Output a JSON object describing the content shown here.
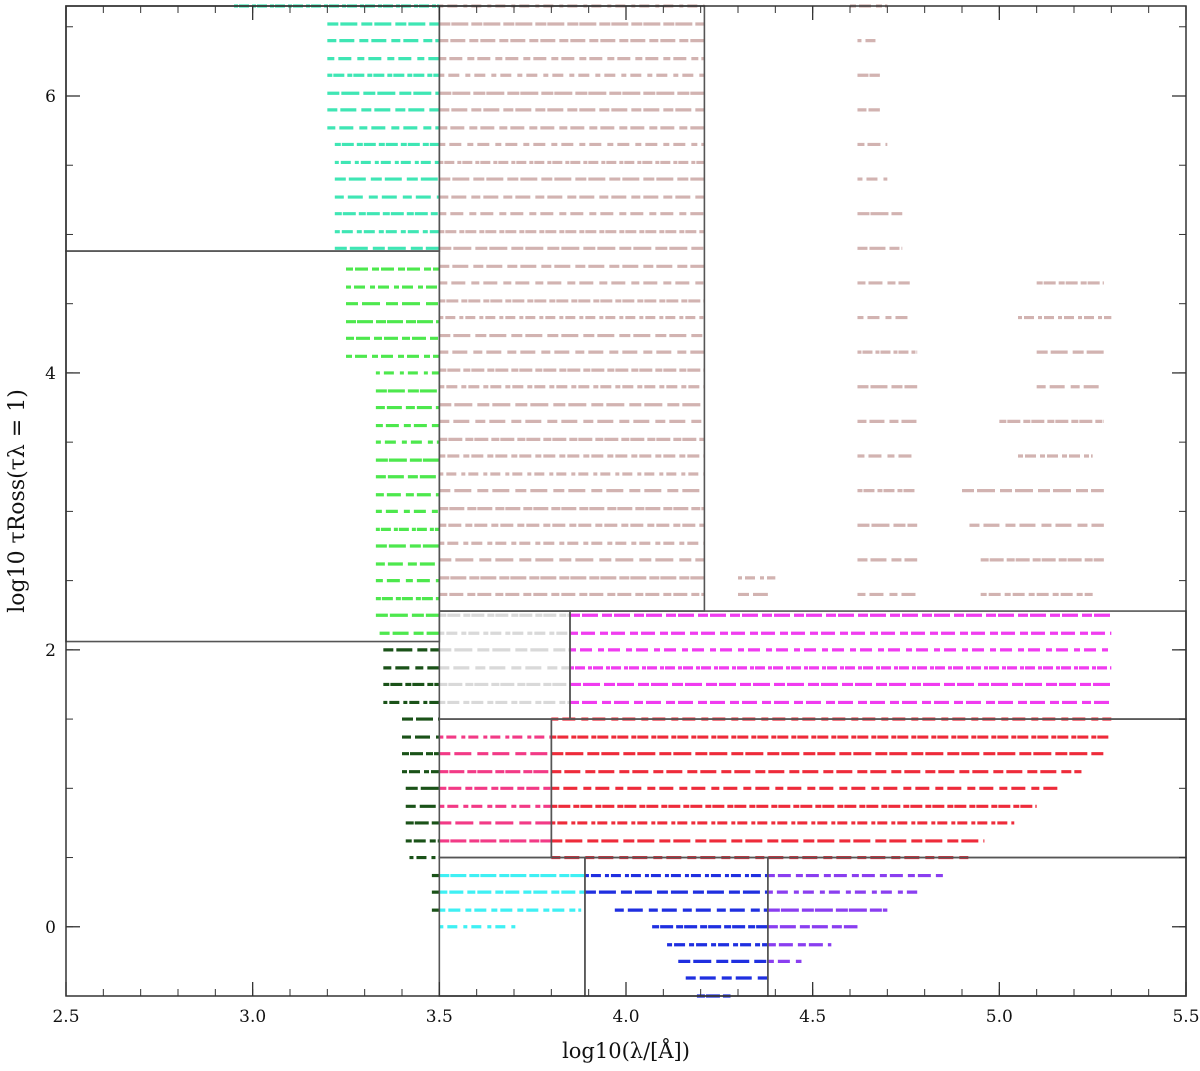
{
  "chart_data": {
    "type": "scatter",
    "title": "",
    "xlabel": "log10(λ/[Å])",
    "ylabel": "log10 τRoss(τλ = 1)",
    "xlim": [
      2.5,
      5.5
    ],
    "ylim": [
      -0.5,
      6.65
    ],
    "x_ticks": [
      "2.5",
      "3.0",
      "3.5",
      "4.0",
      "4.5",
      "5.0",
      "5.5"
    ],
    "y_ticks": [
      "0",
      "2",
      "4",
      "6"
    ],
    "x_tick_values": [
      2.5,
      3.0,
      3.5,
      4.0,
      4.5,
      5.0,
      5.5
    ],
    "y_tick_values": [
      0,
      2,
      4,
      6
    ],
    "grid": false,
    "boxes": [
      {
        "x0": 2.5,
        "x1": 3.5,
        "y0": 4.88,
        "y1": 6.65
      },
      {
        "x0": 2.5,
        "x1": 3.5,
        "y0": 2.06,
        "y1": 4.88
      },
      {
        "x0": 3.5,
        "x1": 4.21,
        "y0": 2.28,
        "y1": 6.65
      },
      {
        "x0": 3.5,
        "x1": 3.85,
        "y0": 1.5,
        "y1": 2.28
      },
      {
        "x0": 3.85,
        "x1": 5.5,
        "y0": 1.5,
        "y1": 2.28
      },
      {
        "x0": 3.5,
        "x1": 3.8,
        "y0": 0.5,
        "y1": 1.5
      },
      {
        "x0": 3.8,
        "x1": 5.5,
        "y0": 0.5,
        "y1": 1.5
      },
      {
        "x0": 3.5,
        "x1": 3.89,
        "y0": -0.5,
        "y1": 0.5
      },
      {
        "x0": 3.89,
        "x1": 4.38,
        "y0": -0.5,
        "y1": 0.5
      },
      {
        "x0": 4.38,
        "x1": 5.5,
        "y0": -0.5,
        "y1": 0.5
      }
    ],
    "series": [
      {
        "color": "#3fe6b4",
        "rows": [
          {
            "y": 6.65,
            "x0": 2.95,
            "x1": 3.5
          },
          {
            "y": 6.52,
            "x0": 3.2,
            "x1": 3.5
          },
          {
            "y": 6.4,
            "x0": 3.2,
            "x1": 3.5
          },
          {
            "y": 6.27,
            "x0": 3.2,
            "x1": 3.5
          },
          {
            "y": 6.15,
            "x0": 3.2,
            "x1": 3.5
          },
          {
            "y": 6.02,
            "x0": 3.2,
            "x1": 3.5
          },
          {
            "y": 5.9,
            "x0": 3.2,
            "x1": 3.5
          },
          {
            "y": 5.77,
            "x0": 3.2,
            "x1": 3.5
          },
          {
            "y": 5.65,
            "x0": 3.22,
            "x1": 3.5
          },
          {
            "y": 5.52,
            "x0": 3.22,
            "x1": 3.5
          },
          {
            "y": 5.4,
            "x0": 3.22,
            "x1": 3.5
          },
          {
            "y": 5.27,
            "x0": 3.22,
            "x1": 3.5
          },
          {
            "y": 5.15,
            "x0": 3.22,
            "x1": 3.5
          },
          {
            "y": 5.02,
            "x0": 3.22,
            "x1": 3.5
          },
          {
            "y": 4.9,
            "x0": 3.22,
            "x1": 3.5
          }
        ]
      },
      {
        "color": "#4de84d",
        "rows": [
          {
            "y": 4.75,
            "x0": 3.25,
            "x1": 3.5
          },
          {
            "y": 4.62,
            "x0": 3.25,
            "x1": 3.5
          },
          {
            "y": 4.5,
            "x0": 3.25,
            "x1": 3.5
          },
          {
            "y": 4.37,
            "x0": 3.25,
            "x1": 3.5
          },
          {
            "y": 4.25,
            "x0": 3.25,
            "x1": 3.5
          },
          {
            "y": 4.12,
            "x0": 3.25,
            "x1": 3.5
          },
          {
            "y": 4.0,
            "x0": 3.33,
            "x1": 3.5
          },
          {
            "y": 3.87,
            "x0": 3.33,
            "x1": 3.5
          },
          {
            "y": 3.75,
            "x0": 3.33,
            "x1": 3.5
          },
          {
            "y": 3.62,
            "x0": 3.33,
            "x1": 3.5
          },
          {
            "y": 3.5,
            "x0": 3.33,
            "x1": 3.5
          },
          {
            "y": 3.37,
            "x0": 3.33,
            "x1": 3.5
          },
          {
            "y": 3.25,
            "x0": 3.33,
            "x1": 3.5
          },
          {
            "y": 3.12,
            "x0": 3.33,
            "x1": 3.5
          },
          {
            "y": 3.0,
            "x0": 3.33,
            "x1": 3.5
          },
          {
            "y": 2.87,
            "x0": 3.33,
            "x1": 3.5
          },
          {
            "y": 2.75,
            "x0": 3.33,
            "x1": 3.5
          },
          {
            "y": 2.62,
            "x0": 3.33,
            "x1": 3.5
          },
          {
            "y": 2.5,
            "x0": 3.33,
            "x1": 3.5
          },
          {
            "y": 2.37,
            "x0": 3.33,
            "x1": 3.5
          },
          {
            "y": 2.25,
            "x0": 3.33,
            "x1": 3.5
          },
          {
            "y": 2.12,
            "x0": 3.34,
            "x1": 3.5
          }
        ]
      },
      {
        "color": "#1a5218",
        "rows": [
          {
            "y": 2.0,
            "x0": 3.35,
            "x1": 3.5
          },
          {
            "y": 1.87,
            "x0": 3.35,
            "x1": 3.5
          },
          {
            "y": 1.75,
            "x0": 3.35,
            "x1": 3.5
          },
          {
            "y": 1.62,
            "x0": 3.35,
            "x1": 3.5
          },
          {
            "y": 1.5,
            "x0": 3.4,
            "x1": 3.5
          },
          {
            "y": 1.37,
            "x0": 3.4,
            "x1": 3.5
          },
          {
            "y": 1.25,
            "x0": 3.4,
            "x1": 3.5
          },
          {
            "y": 1.12,
            "x0": 3.4,
            "x1": 3.5
          },
          {
            "y": 1.0,
            "x0": 3.41,
            "x1": 3.5
          },
          {
            "y": 0.87,
            "x0": 3.41,
            "x1": 3.5
          },
          {
            "y": 0.75,
            "x0": 3.41,
            "x1": 3.5
          },
          {
            "y": 0.62,
            "x0": 3.41,
            "x1": 3.5
          },
          {
            "y": 0.5,
            "x0": 3.42,
            "x1": 3.5
          },
          {
            "y": 0.37,
            "x0": 3.48,
            "x1": 3.5
          },
          {
            "y": 0.25,
            "x0": 3.48,
            "x1": 3.5
          },
          {
            "y": 0.12,
            "x0": 3.48,
            "x1": 3.5
          }
        ]
      },
      {
        "color": "#d2b3b1",
        "rows": [
          {
            "y": 6.65,
            "x0": 3.5,
            "x1": 4.21
          },
          {
            "y": 6.52,
            "x0": 3.5,
            "x1": 4.21
          },
          {
            "y": 6.4,
            "x0": 3.5,
            "x1": 4.21
          },
          {
            "y": 6.27,
            "x0": 3.5,
            "x1": 4.21
          },
          {
            "y": 6.15,
            "x0": 3.5,
            "x1": 4.21
          },
          {
            "y": 6.02,
            "x0": 3.5,
            "x1": 4.21
          },
          {
            "y": 5.9,
            "x0": 3.5,
            "x1": 4.21
          },
          {
            "y": 5.77,
            "x0": 3.5,
            "x1": 4.21
          },
          {
            "y": 5.65,
            "x0": 3.5,
            "x1": 4.21
          },
          {
            "y": 5.52,
            "x0": 3.5,
            "x1": 4.21
          },
          {
            "y": 5.4,
            "x0": 3.5,
            "x1": 4.21
          },
          {
            "y": 5.27,
            "x0": 3.5,
            "x1": 4.21
          },
          {
            "y": 5.15,
            "x0": 3.5,
            "x1": 4.21
          },
          {
            "y": 5.02,
            "x0": 3.5,
            "x1": 4.21
          },
          {
            "y": 4.9,
            "x0": 3.5,
            "x1": 4.21
          },
          {
            "y": 4.77,
            "x0": 3.5,
            "x1": 4.21
          },
          {
            "y": 4.65,
            "x0": 3.5,
            "x1": 4.21
          },
          {
            "y": 4.52,
            "x0": 3.5,
            "x1": 4.21
          },
          {
            "y": 4.4,
            "x0": 3.5,
            "x1": 4.21
          },
          {
            "y": 4.27,
            "x0": 3.5,
            "x1": 4.21
          },
          {
            "y": 4.15,
            "x0": 3.5,
            "x1": 4.21
          },
          {
            "y": 4.02,
            "x0": 3.5,
            "x1": 4.21
          },
          {
            "y": 3.9,
            "x0": 3.5,
            "x1": 4.21
          },
          {
            "y": 3.77,
            "x0": 3.5,
            "x1": 4.21
          },
          {
            "y": 3.65,
            "x0": 3.5,
            "x1": 4.21
          },
          {
            "y": 3.52,
            "x0": 3.5,
            "x1": 4.21
          },
          {
            "y": 3.4,
            "x0": 3.5,
            "x1": 4.21
          },
          {
            "y": 3.27,
            "x0": 3.5,
            "x1": 4.21
          },
          {
            "y": 3.15,
            "x0": 3.5,
            "x1": 4.21
          },
          {
            "y": 3.02,
            "x0": 3.5,
            "x1": 4.21
          },
          {
            "y": 2.9,
            "x0": 3.5,
            "x1": 4.21
          },
          {
            "y": 2.77,
            "x0": 3.5,
            "x1": 4.21
          },
          {
            "y": 2.65,
            "x0": 3.5,
            "x1": 4.21
          },
          {
            "y": 2.52,
            "x0": 3.5,
            "x1": 4.21
          },
          {
            "y": 2.4,
            "x0": 3.5,
            "x1": 4.21
          },
          {
            "y": 6.65,
            "x0": 4.6,
            "x1": 4.7
          },
          {
            "y": 6.4,
            "x0": 4.62,
            "x1": 4.68
          },
          {
            "y": 6.15,
            "x0": 4.62,
            "x1": 4.68
          },
          {
            "y": 5.9,
            "x0": 4.62,
            "x1": 4.68
          },
          {
            "y": 5.65,
            "x0": 4.62,
            "x1": 4.7
          },
          {
            "y": 5.4,
            "x0": 4.62,
            "x1": 4.7
          },
          {
            "y": 5.15,
            "x0": 4.62,
            "x1": 4.74
          },
          {
            "y": 4.9,
            "x0": 4.62,
            "x1": 4.74
          },
          {
            "y": 4.65,
            "x0": 4.62,
            "x1": 4.76
          },
          {
            "y": 4.4,
            "x0": 4.62,
            "x1": 4.76
          },
          {
            "y": 4.15,
            "x0": 4.62,
            "x1": 4.78
          },
          {
            "y": 3.9,
            "x0": 4.62,
            "x1": 4.78
          },
          {
            "y": 3.65,
            "x0": 4.62,
            "x1": 4.78
          },
          {
            "y": 3.4,
            "x0": 4.62,
            "x1": 4.78
          },
          {
            "y": 3.15,
            "x0": 4.62,
            "x1": 4.78
          },
          {
            "y": 2.9,
            "x0": 4.62,
            "x1": 4.78
          },
          {
            "y": 2.65,
            "x0": 4.62,
            "x1": 4.78
          },
          {
            "y": 2.4,
            "x0": 4.62,
            "x1": 4.78
          },
          {
            "y": 4.65,
            "x0": 5.1,
            "x1": 5.28
          },
          {
            "y": 4.4,
            "x0": 5.05,
            "x1": 5.3
          },
          {
            "y": 4.15,
            "x0": 5.1,
            "x1": 5.28
          },
          {
            "y": 3.9,
            "x0": 5.1,
            "x1": 5.28
          },
          {
            "y": 3.65,
            "x0": 5.0,
            "x1": 5.28
          },
          {
            "y": 3.4,
            "x0": 5.05,
            "x1": 5.25
          },
          {
            "y": 3.15,
            "x0": 4.9,
            "x1": 5.28
          },
          {
            "y": 2.9,
            "x0": 4.92,
            "x1": 5.28
          },
          {
            "y": 2.65,
            "x0": 4.95,
            "x1": 5.28
          },
          {
            "y": 2.4,
            "x0": 4.95,
            "x1": 5.25
          },
          {
            "y": 2.52,
            "x0": 4.3,
            "x1": 4.4
          },
          {
            "y": 2.4,
            "x0": 4.3,
            "x1": 4.38
          }
        ]
      },
      {
        "color": "#d9d9d9",
        "rows": [
          {
            "y": 2.25,
            "x0": 3.5,
            "x1": 3.85
          },
          {
            "y": 2.12,
            "x0": 3.5,
            "x1": 3.85
          },
          {
            "y": 2.0,
            "x0": 3.5,
            "x1": 3.85
          },
          {
            "y": 1.87,
            "x0": 3.5,
            "x1": 3.85
          },
          {
            "y": 1.75,
            "x0": 3.5,
            "x1": 3.85
          },
          {
            "y": 1.62,
            "x0": 3.5,
            "x1": 3.85
          }
        ]
      },
      {
        "color": "#f03cf0",
        "rows": [
          {
            "y": 2.25,
            "x0": 3.85,
            "x1": 5.3
          },
          {
            "y": 2.12,
            "x0": 3.85,
            "x1": 5.3
          },
          {
            "y": 2.0,
            "x0": 3.85,
            "x1": 5.3
          },
          {
            "y": 1.87,
            "x0": 3.85,
            "x1": 5.3
          },
          {
            "y": 1.75,
            "x0": 3.85,
            "x1": 5.3
          },
          {
            "y": 1.62,
            "x0": 3.85,
            "x1": 5.3
          }
        ]
      },
      {
        "color": "#f23a86",
        "rows": [
          {
            "y": 1.37,
            "x0": 3.5,
            "x1": 3.8
          },
          {
            "y": 1.25,
            "x0": 3.5,
            "x1": 3.8
          },
          {
            "y": 1.12,
            "x0": 3.5,
            "x1": 3.8
          },
          {
            "y": 1.0,
            "x0": 3.5,
            "x1": 3.8
          },
          {
            "y": 0.87,
            "x0": 3.5,
            "x1": 3.8
          },
          {
            "y": 0.75,
            "x0": 3.5,
            "x1": 3.8
          },
          {
            "y": 0.62,
            "x0": 3.5,
            "x1": 3.8
          }
        ]
      },
      {
        "color": "#ee2b3a",
        "rows": [
          {
            "y": 1.5,
            "x0": 3.8,
            "x1": 5.3
          },
          {
            "y": 1.37,
            "x0": 3.8,
            "x1": 5.3
          },
          {
            "y": 1.25,
            "x0": 3.8,
            "x1": 5.28
          },
          {
            "y": 1.12,
            "x0": 3.8,
            "x1": 5.22
          },
          {
            "y": 1.0,
            "x0": 3.8,
            "x1": 5.16
          },
          {
            "y": 0.87,
            "x0": 3.8,
            "x1": 5.1
          },
          {
            "y": 0.75,
            "x0": 3.8,
            "x1": 5.04
          },
          {
            "y": 0.62,
            "x0": 3.8,
            "x1": 4.96
          },
          {
            "y": 0.5,
            "x0": 3.8,
            "x1": 4.92
          }
        ]
      },
      {
        "color": "#3ff0f4",
        "rows": [
          {
            "y": 0.37,
            "x0": 3.5,
            "x1": 3.89
          },
          {
            "y": 0.25,
            "x0": 3.5,
            "x1": 3.89
          },
          {
            "y": 0.12,
            "x0": 3.5,
            "x1": 3.88
          },
          {
            "y": 0.0,
            "x0": 3.5,
            "x1": 3.71
          }
        ]
      },
      {
        "color": "#1f2fe0",
        "rows": [
          {
            "y": 0.37,
            "x0": 3.89,
            "x1": 4.38
          },
          {
            "y": 0.25,
            "x0": 3.89,
            "x1": 4.38
          },
          {
            "y": 0.12,
            "x0": 3.97,
            "x1": 4.38
          },
          {
            "y": 0.0,
            "x0": 4.07,
            "x1": 4.38
          },
          {
            "y": -0.13,
            "x0": 4.11,
            "x1": 4.38
          },
          {
            "y": -0.25,
            "x0": 4.14,
            "x1": 4.38
          },
          {
            "y": -0.37,
            "x0": 4.16,
            "x1": 4.38
          },
          {
            "y": -0.5,
            "x0": 4.19,
            "x1": 4.28
          }
        ]
      },
      {
        "color": "#8a3ef0",
        "rows": [
          {
            "y": 0.37,
            "x0": 4.38,
            "x1": 4.85
          },
          {
            "y": 0.25,
            "x0": 4.38,
            "x1": 4.78
          },
          {
            "y": 0.12,
            "x0": 4.38,
            "x1": 4.7
          },
          {
            "y": 0.0,
            "x0": 4.38,
            "x1": 4.62
          },
          {
            "y": -0.13,
            "x0": 4.38,
            "x1": 4.55
          },
          {
            "y": -0.25,
            "x0": 4.38,
            "x1": 4.47
          }
        ]
      }
    ]
  }
}
